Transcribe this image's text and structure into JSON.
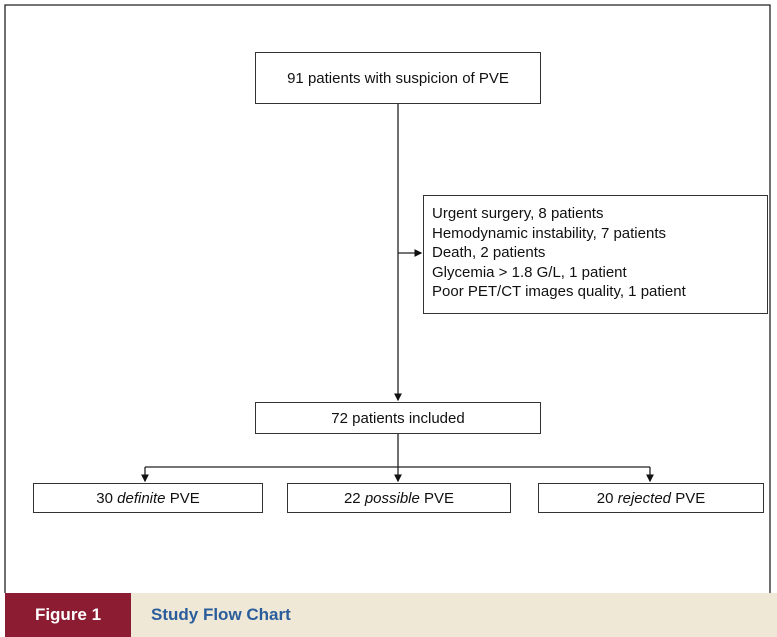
{
  "nodes": [
    {
      "label": "91 patients with suspicion of PVE"
    },
    {
      "label": "72 patients included"
    }
  ],
  "exclusions": [
    "Urgent surgery, 8 patients",
    "Hemodynamic instability, 7 patients",
    "Death, 2 patients",
    "Glycemia > 1.8 G/L, 1 patient",
    "Poor PET/CT images quality, 1 patient"
  ],
  "outcomes": [
    {
      "count": "30",
      "qualifier": "definite",
      "suffix": "PVE"
    },
    {
      "count": "22",
      "qualifier": "possible",
      "suffix": "PVE"
    },
    {
      "count": "20",
      "qualifier": "rejected",
      "suffix": "PVE"
    }
  ],
  "caption": {
    "label": "Figure 1",
    "title": "Study Flow Chart"
  }
}
